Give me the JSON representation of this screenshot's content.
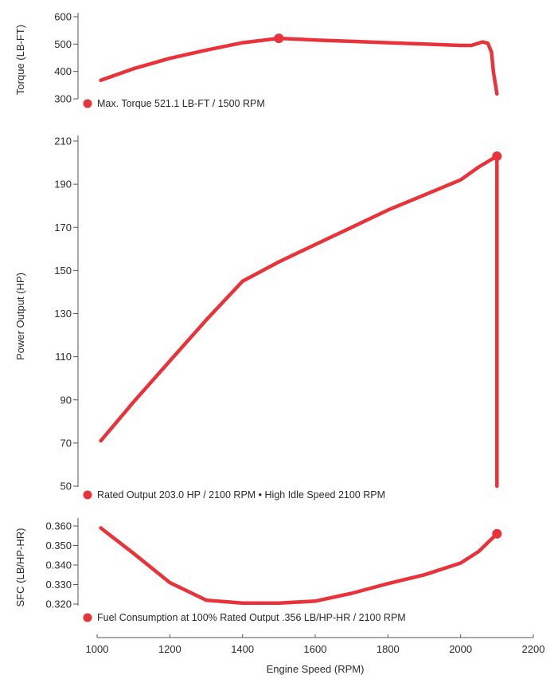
{
  "chart_data": {
    "type": "line",
    "xlabel": "Engine Speed (RPM)",
    "xlim": [
      1000,
      2200
    ],
    "x_ticks": [
      "1000",
      "1200",
      "1400",
      "1600",
      "1800",
      "2000",
      "2200"
    ],
    "accent_color": "#e8333a",
    "panels": [
      {
        "ylabel": "Torque (LB-FT)",
        "ylim": [
          300,
          600
        ],
        "y_ticks": [
          "600",
          "500",
          "400",
          "300"
        ],
        "x": [
          1010,
          1100,
          1200,
          1300,
          1400,
          1500,
          1600,
          1700,
          1800,
          1900,
          2000,
          2030,
          2060,
          2075,
          2085,
          2090,
          2100
        ],
        "y": [
          368,
          410,
          448,
          478,
          505,
          521,
          515,
          510,
          505,
          500,
          495,
          495,
          508,
          503,
          470,
          400,
          318
        ],
        "marker": {
          "x": 1500,
          "y": 521.1
        },
        "annotation": "Max. Torque 521.1 LB-FT / 1500 RPM"
      },
      {
        "ylabel": "Power Output (HP)",
        "ylim": [
          50,
          210
        ],
        "y_ticks": [
          "210",
          "190",
          "170",
          "150",
          "130",
          "110",
          "90",
          "70",
          "50"
        ],
        "x": [
          1010,
          1100,
          1200,
          1300,
          1400,
          1500,
          1600,
          1700,
          1800,
          1900,
          2000,
          2050,
          2100,
          2100
        ],
        "y": [
          71,
          89,
          108,
          127,
          145,
          154,
          162,
          170,
          178,
          185,
          192,
          198,
          203,
          50
        ],
        "marker": {
          "x": 2100,
          "y": 203.0
        },
        "annotation": "Rated Output 203.0 HP / 2100 RPM • High Idle Speed 2100 RPM"
      },
      {
        "ylabel": "SFC (LB/HP-HR)",
        "ylim": [
          0.32,
          0.36
        ],
        "y_ticks": [
          "0.360",
          "0.350",
          "0.340",
          "0.330",
          "0.320"
        ],
        "x": [
          1010,
          1100,
          1200,
          1300,
          1400,
          1500,
          1600,
          1700,
          1800,
          1900,
          2000,
          2050,
          2100
        ],
        "y": [
          0.359,
          0.346,
          0.331,
          0.322,
          0.3205,
          0.3205,
          0.3215,
          0.3255,
          0.3305,
          0.335,
          0.341,
          0.347,
          0.356
        ],
        "marker": {
          "x": 2100,
          "y": 0.356
        },
        "annotation": "Fuel Consumption at 100% Rated Output .356 LB/HP-HR / 2100 RPM"
      }
    ]
  }
}
